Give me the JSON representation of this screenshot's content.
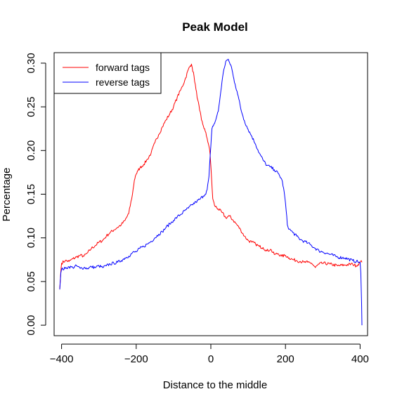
{
  "chart_data": {
    "type": "line",
    "title": "Peak Model",
    "xlabel": "Distance to the middle",
    "ylabel": "Percentage",
    "xlim": [
      -420,
      420
    ],
    "ylim": [
      -0.012,
      0.312
    ],
    "xticks": [
      -400,
      -200,
      0,
      200,
      400
    ],
    "xtick_labels": [
      "−400",
      "−200",
      "0",
      "200",
      "400"
    ],
    "yticks": [
      0.0,
      0.05,
      0.1,
      0.15,
      0.2,
      0.25,
      0.3
    ],
    "ytick_labels": [
      "0.00",
      "0.05",
      "0.10",
      "0.15",
      "0.20",
      "0.25",
      "0.30"
    ],
    "grid": false,
    "legend_position": "top-left",
    "series": [
      {
        "name": "forward tags",
        "color": "#ff0000",
        "x": [
          -405,
          -402,
          -400,
          -390,
          -380,
          -370,
          -360,
          -350,
          -340,
          -330,
          -320,
          -310,
          -300,
          -290,
          -280,
          -270,
          -260,
          -250,
          -240,
          -230,
          -220,
          -210,
          -205,
          -202,
          -200,
          -195,
          -190,
          -180,
          -170,
          -160,
          -150,
          -140,
          -130,
          -120,
          -110,
          -100,
          -90,
          -80,
          -70,
          -60,
          -55,
          -52,
          -50,
          -45,
          -40,
          -35,
          -30,
          -25,
          -20,
          -15,
          -10,
          -5,
          -2,
          0,
          5,
          10,
          20,
          30,
          40,
          50,
          60,
          70,
          80,
          90,
          100,
          110,
          120,
          130,
          140,
          150,
          160,
          170,
          180,
          190,
          200,
          210,
          220,
          230,
          240,
          250,
          260,
          270,
          280,
          290,
          300,
          320,
          340,
          360,
          380,
          390,
          400,
          403,
          405
        ],
        "y": [
          0.041,
          0.062,
          0.071,
          0.074,
          0.073,
          0.076,
          0.078,
          0.08,
          0.079,
          0.083,
          0.088,
          0.091,
          0.095,
          0.097,
          0.102,
          0.106,
          0.109,
          0.112,
          0.115,
          0.12,
          0.128,
          0.15,
          0.166,
          0.171,
          0.173,
          0.177,
          0.18,
          0.184,
          0.19,
          0.197,
          0.209,
          0.218,
          0.227,
          0.235,
          0.242,
          0.25,
          0.261,
          0.27,
          0.28,
          0.293,
          0.297,
          0.299,
          0.295,
          0.285,
          0.27,
          0.258,
          0.246,
          0.235,
          0.228,
          0.222,
          0.214,
          0.205,
          0.196,
          0.183,
          0.145,
          0.137,
          0.133,
          0.129,
          0.123,
          0.125,
          0.12,
          0.115,
          0.109,
          0.102,
          0.097,
          0.095,
          0.093,
          0.09,
          0.089,
          0.085,
          0.087,
          0.081,
          0.082,
          0.079,
          0.08,
          0.077,
          0.075,
          0.074,
          0.073,
          0.072,
          0.072,
          0.071,
          0.066,
          0.07,
          0.071,
          0.07,
          0.068,
          0.069,
          0.07,
          0.068,
          0.072,
          0.074,
          0.072
        ]
      },
      {
        "name": "reverse tags",
        "color": "#0000ff",
        "x": [
          -405,
          -402,
          -400,
          -390,
          -380,
          -370,
          -360,
          -350,
          -340,
          -330,
          -320,
          -310,
          -300,
          -290,
          -280,
          -270,
          -260,
          -250,
          -240,
          -230,
          -220,
          -210,
          -200,
          -190,
          -180,
          -170,
          -160,
          -150,
          -140,
          -130,
          -120,
          -110,
          -100,
          -90,
          -80,
          -70,
          -60,
          -50,
          -40,
          -30,
          -20,
          -15,
          -10,
          -5,
          0,
          3,
          5,
          10,
          15,
          20,
          25,
          30,
          35,
          40,
          45,
          50,
          55,
          60,
          65,
          70,
          75,
          80,
          90,
          100,
          110,
          120,
          130,
          140,
          150,
          160,
          170,
          180,
          190,
          195,
          200,
          205,
          210,
          220,
          230,
          240,
          250,
          260,
          270,
          280,
          290,
          300,
          320,
          340,
          360,
          380,
          390,
          400,
          402,
          404,
          405
        ],
        "y": [
          0.041,
          0.06,
          0.064,
          0.065,
          0.067,
          0.066,
          0.068,
          0.065,
          0.066,
          0.065,
          0.067,
          0.066,
          0.068,
          0.066,
          0.068,
          0.07,
          0.071,
          0.072,
          0.074,
          0.077,
          0.079,
          0.083,
          0.084,
          0.088,
          0.09,
          0.093,
          0.096,
          0.1,
          0.104,
          0.107,
          0.112,
          0.116,
          0.12,
          0.124,
          0.127,
          0.131,
          0.134,
          0.138,
          0.141,
          0.144,
          0.148,
          0.15,
          0.155,
          0.17,
          0.205,
          0.225,
          0.228,
          0.231,
          0.238,
          0.245,
          0.262,
          0.279,
          0.293,
          0.302,
          0.304,
          0.301,
          0.296,
          0.285,
          0.276,
          0.268,
          0.259,
          0.248,
          0.234,
          0.224,
          0.216,
          0.207,
          0.197,
          0.189,
          0.183,
          0.181,
          0.178,
          0.174,
          0.167,
          0.157,
          0.14,
          0.115,
          0.11,
          0.106,
          0.102,
          0.098,
          0.096,
          0.094,
          0.091,
          0.088,
          0.085,
          0.084,
          0.081,
          0.078,
          0.077,
          0.074,
          0.073,
          0.072,
          0.06,
          0.025,
          0.0
        ]
      }
    ]
  }
}
